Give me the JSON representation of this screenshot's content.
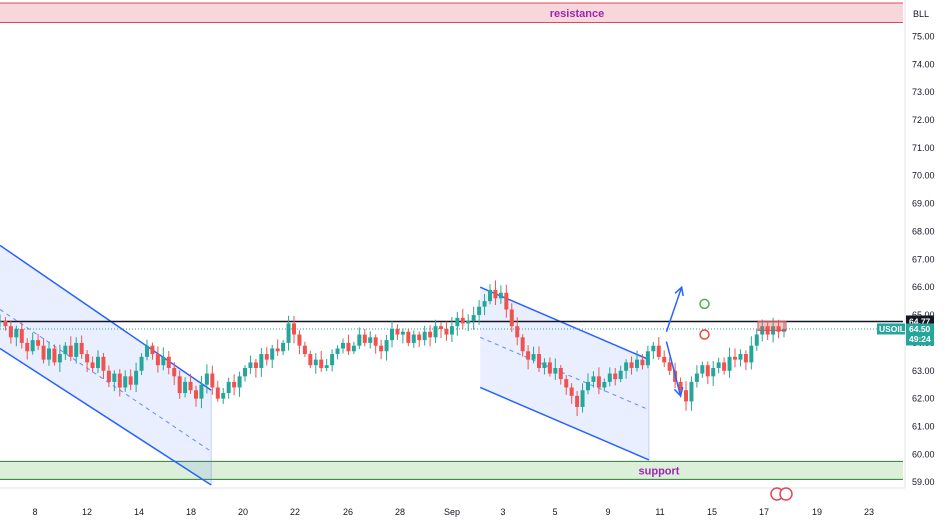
{
  "chart_data": {
    "type": "candlestick",
    "symbol": "USOIL",
    "last_price": "64.50",
    "countdown": "49:24",
    "level_line_price": "64.77",
    "price_scale_unit": "BLL",
    "x_tick_labels": [
      "8",
      "12",
      "14",
      "18",
      "20",
      "22",
      "26",
      "28",
      "Sep",
      "3",
      "5",
      "9",
      "11",
      "15",
      "17",
      "19",
      "23"
    ],
    "y_tick_labels": [
      "59.00",
      "60.00",
      "61.00",
      "62.00",
      "63.00",
      "64.00",
      "65.00",
      "66.00",
      "67.00",
      "68.00",
      "69.00",
      "70.00",
      "71.00",
      "72.00",
      "73.00",
      "74.00",
      "75.00"
    ],
    "ylim": [
      58.9,
      76.2
    ],
    "grid": false,
    "zones": [
      {
        "label": "resistance",
        "from": 75.5,
        "to": 76.2,
        "color": "#f8d7dc",
        "border": "#e0475a"
      },
      {
        "label": "support",
        "from": 59.1,
        "to": 59.75,
        "color": "#dcefd9",
        "border": "#2e7d32"
      }
    ],
    "candle_colors": {
      "up": "#26a69a",
      "down": "#ef5350"
    },
    "level_color": "#131722",
    "channel_color": "#2962ff",
    "channels": [
      {
        "upper": [
          [
            0,
            67.5
          ],
          [
            19.4,
            62.3
          ]
        ],
        "lower": [
          [
            0,
            63.8
          ],
          [
            19.4,
            58.9
          ]
        ],
        "mid": [
          [
            0,
            65.2
          ],
          [
            19.4,
            60.1
          ]
        ],
        "shaded_from": 0,
        "shaded_to": 19.4
      },
      {
        "upper": [
          [
            44.1,
            66.0
          ],
          [
            59.6,
            63.4
          ]
        ],
        "lower": [
          [
            44.1,
            62.4
          ],
          [
            59.6,
            59.8
          ]
        ],
        "mid": [
          [
            44.1,
            64.2
          ],
          [
            59.6,
            61.6
          ]
        ],
        "shaded_from": 44.1,
        "shaded_to": 59.6
      }
    ],
    "projection_arrows": [
      {
        "from": [
          61.2,
          64.4
        ],
        "to": [
          62.6,
          66.0
        ],
        "direction": "up"
      },
      {
        "from": [
          61.2,
          64.05
        ],
        "to": [
          62.5,
          62.1
        ],
        "direction": "down"
      }
    ],
    "markers": [
      {
        "x": 64.7,
        "y": 65.4,
        "color": "#4caf50"
      },
      {
        "x": 64.7,
        "y": 64.3,
        "color": "#f44336"
      }
    ],
    "price_path": [
      [
        0,
        64.8
      ],
      [
        0.5,
        64.6
      ],
      [
        1,
        64.2
      ],
      [
        1.5,
        64.5
      ],
      [
        2,
        64.0
      ],
      [
        2.5,
        63.7
      ],
      [
        3,
        64.1
      ],
      [
        3.5,
        63.9
      ],
      [
        4,
        63.4
      ],
      [
        4.5,
        63.8
      ],
      [
        5,
        63.3
      ],
      [
        5.5,
        63.6
      ],
      [
        6,
        63.9
      ],
      [
        6.5,
        63.5
      ],
      [
        7,
        64.0
      ],
      [
        7.5,
        63.6
      ],
      [
        8,
        63.3
      ],
      [
        8.5,
        63.1
      ],
      [
        9,
        63.5
      ],
      [
        9.5,
        63.0
      ],
      [
        10,
        62.6
      ],
      [
        10.5,
        62.9
      ],
      [
        11,
        62.4
      ],
      [
        11.5,
        62.8
      ],
      [
        12,
        62.5
      ],
      [
        12.5,
        63.0
      ],
      [
        13,
        63.5
      ],
      [
        13.5,
        63.9
      ],
      [
        14,
        63.6
      ],
      [
        14.5,
        63.2
      ],
      [
        15,
        63.5
      ],
      [
        15.5,
        63.1
      ],
      [
        16,
        62.8
      ],
      [
        16.5,
        62.2
      ],
      [
        17,
        62.6
      ],
      [
        17.5,
        62.3
      ],
      [
        18,
        62.0
      ],
      [
        18.5,
        62.5
      ],
      [
        19,
        62.9
      ],
      [
        19.5,
        62.4
      ],
      [
        20,
        62.0
      ],
      [
        20.5,
        62.2
      ],
      [
        21,
        62.6
      ],
      [
        21.5,
        62.4
      ],
      [
        22,
        62.8
      ],
      [
        22.5,
        63.1
      ],
      [
        23,
        63.3
      ],
      [
        23.5,
        63.1
      ],
      [
        24,
        63.6
      ],
      [
        24.5,
        63.4
      ],
      [
        25,
        63.8
      ],
      [
        25.5,
        63.7
      ],
      [
        26,
        64.0
      ],
      [
        26.5,
        64.7
      ],
      [
        27,
        64.3
      ],
      [
        27.5,
        63.9
      ],
      [
        28,
        63.6
      ],
      [
        28.5,
        63.2
      ],
      [
        29,
        63.4
      ],
      [
        29.5,
        63.1
      ],
      [
        30,
        63.2
      ],
      [
        30.5,
        63.6
      ],
      [
        31,
        63.8
      ],
      [
        31.5,
        64.0
      ],
      [
        32,
        63.7
      ],
      [
        32.5,
        63.9
      ],
      [
        33,
        64.3
      ],
      [
        33.5,
        64.0
      ],
      [
        34,
        64.2
      ],
      [
        34.5,
        63.9
      ],
      [
        35,
        63.7
      ],
      [
        35.5,
        64.1
      ],
      [
        36,
        64.5
      ],
      [
        36.5,
        64.3
      ],
      [
        37,
        64.4
      ],
      [
        37.5,
        64.0
      ],
      [
        38,
        64.3
      ],
      [
        38.5,
        64.1
      ],
      [
        39,
        64.4
      ],
      [
        39.5,
        64.2
      ],
      [
        40,
        64.6
      ],
      [
        40.5,
        64.5
      ],
      [
        41,
        64.3
      ],
      [
        41.5,
        64.6
      ],
      [
        42,
        64.9
      ],
      [
        42.5,
        64.7
      ],
      [
        43,
        64.8
      ],
      [
        43.5,
        65.0
      ],
      [
        44,
        65.3
      ],
      [
        44.5,
        65.5
      ],
      [
        45,
        65.9
      ],
      [
        45.5,
        65.6
      ],
      [
        46,
        65.8
      ],
      [
        46.5,
        65.2
      ],
      [
        47,
        64.6
      ],
      [
        47.5,
        64.2
      ],
      [
        48,
        63.7
      ],
      [
        48.5,
        63.4
      ],
      [
        49,
        63.6
      ],
      [
        49.5,
        63.1
      ],
      [
        50,
        63.3
      ],
      [
        50.5,
        62.9
      ],
      [
        51,
        63.1
      ],
      [
        51.5,
        62.7
      ],
      [
        52,
        62.4
      ],
      [
        52.5,
        62.1
      ],
      [
        53,
        61.7
      ],
      [
        53.5,
        62.3
      ],
      [
        54,
        62.6
      ],
      [
        54.5,
        62.8
      ],
      [
        55,
        62.4
      ],
      [
        55.5,
        62.6
      ],
      [
        56,
        62.9
      ],
      [
        56.5,
        62.7
      ],
      [
        57,
        63.0
      ],
      [
        57.5,
        63.3
      ],
      [
        58,
        63.1
      ],
      [
        58.5,
        63.4
      ],
      [
        59,
        63.2
      ],
      [
        59.5,
        63.7
      ],
      [
        60,
        63.9
      ],
      [
        60.5,
        63.5
      ],
      [
        61,
        63.3
      ],
      [
        61.5,
        63.0
      ],
      [
        62,
        62.6
      ],
      [
        62.5,
        62.3
      ],
      [
        63,
        61.9
      ],
      [
        63.5,
        62.6
      ],
      [
        64,
        62.9
      ],
      [
        64.5,
        63.2
      ],
      [
        65,
        62.8
      ],
      [
        65.5,
        63.1
      ],
      [
        66,
        63.3
      ],
      [
        66.5,
        63.0
      ],
      [
        67,
        63.5
      ],
      [
        67.5,
        63.4
      ],
      [
        68,
        63.6
      ],
      [
        68.5,
        63.3
      ],
      [
        69,
        63.9
      ],
      [
        69.5,
        64.3
      ],
      [
        70,
        64.6
      ],
      [
        70.5,
        64.3
      ],
      [
        71,
        64.6
      ],
      [
        71.5,
        64.4
      ],
      [
        72,
        64.5
      ]
    ]
  }
}
